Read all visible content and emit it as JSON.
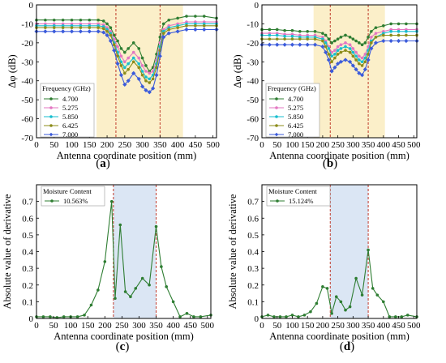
{
  "chart_data": [
    {
      "id": "a",
      "panel_label": "a",
      "type": "line",
      "xlabel": "Antenna coordinate position (mm)",
      "ylabel": "Δφ (dB)",
      "xlim": [
        0,
        510
      ],
      "ylim": [
        -70,
        0
      ],
      "xticks": [
        0,
        50,
        100,
        150,
        200,
        250,
        300,
        350,
        400,
        450,
        500
      ],
      "yticks": [
        0,
        -10,
        -20,
        -30,
        -40,
        -50,
        -60,
        -70
      ],
      "shaded_region": [
        170,
        415
      ],
      "shade_color": "#fbefc9",
      "vlines": [
        225,
        350
      ],
      "vline_color": "#c0392b",
      "legend": {
        "title": "Frequency (GHz)",
        "position": "middle-left"
      },
      "x": [
        0,
        25,
        50,
        75,
        100,
        125,
        150,
        175,
        190,
        200,
        210,
        220,
        230,
        240,
        250,
        260,
        275,
        290,
        300,
        310,
        320,
        330,
        340,
        350,
        360,
        375,
        400,
        425,
        450,
        475,
        510
      ],
      "series": [
        {
          "name": "4.700",
          "color": "#2e7d32",
          "marker": "circle",
          "values": [
            -8,
            -8,
            -8,
            -8,
            -8,
            -8,
            -8,
            -8,
            -8.5,
            -10,
            -12,
            -16,
            -19,
            -23,
            -25,
            -23,
            -20,
            -23,
            -28,
            -32,
            -35,
            -33,
            -26,
            -17,
            -10,
            -8,
            -7,
            -6,
            -6,
            -6,
            -7
          ]
        },
        {
          "name": "5.275",
          "color": "#e377c2",
          "marker": "circle",
          "values": [
            -10,
            -10,
            -10,
            -10,
            -10,
            -10,
            -10,
            -10,
            -10.5,
            -12,
            -14,
            -18,
            -22,
            -27,
            -30,
            -28,
            -25,
            -28,
            -32,
            -35,
            -36,
            -35,
            -29,
            -20,
            -13,
            -11,
            -10,
            -9,
            -9,
            -9,
            -9
          ]
        },
        {
          "name": "5.850",
          "color": "#17becf",
          "marker": "circle",
          "values": [
            -11,
            -11,
            -11,
            -11,
            -11,
            -11,
            -11,
            -11,
            -11.5,
            -13,
            -15,
            -20,
            -25,
            -30,
            -33,
            -31,
            -28,
            -31,
            -35,
            -38,
            -39,
            -37,
            -31,
            -22,
            -14,
            -12,
            -11,
            -10,
            -10,
            -10,
            -10
          ]
        },
        {
          "name": "6.425",
          "color": "#8c8c1a",
          "marker": "circle",
          "values": [
            -12,
            -12,
            -12,
            -12,
            -12,
            -12,
            -12,
            -12,
            -12.5,
            -14,
            -16,
            -21,
            -27,
            -32,
            -36,
            -34,
            -30,
            -33,
            -37,
            -40,
            -41,
            -39,
            -33,
            -24,
            -15,
            -13,
            -12,
            -11,
            -11,
            -11,
            -11
          ]
        },
        {
          "name": "7.000",
          "color": "#3b5bdb",
          "marker": "diamond",
          "values": [
            -14,
            -14,
            -14,
            -14,
            -14,
            -14,
            -14,
            -14,
            -14.5,
            -16,
            -19,
            -24,
            -31,
            -37,
            -42,
            -40,
            -36,
            -39,
            -43,
            -45,
            -46,
            -44,
            -37,
            -27,
            -17,
            -15,
            -14,
            -13,
            -13,
            -13,
            -13
          ]
        }
      ]
    },
    {
      "id": "b",
      "panel_label": "b",
      "type": "line",
      "xlabel": "Antenna coordinate position (mm)",
      "ylabel": "Δφ (dB)",
      "xlim": [
        0,
        510
      ],
      "ylim": [
        -70,
        0
      ],
      "xticks": [
        0,
        50,
        100,
        150,
        200,
        250,
        300,
        350,
        400,
        450,
        500
      ],
      "yticks": [
        0,
        -10,
        -20,
        -30,
        -40,
        -50,
        -60,
        -70
      ],
      "shaded_region": [
        170,
        405
      ],
      "shade_color": "#fbefc9",
      "vlines": [
        225,
        350
      ],
      "vline_color": "#c0392b",
      "legend": {
        "title": "Frequency (GHz)",
        "position": "middle-left"
      },
      "x": [
        0,
        25,
        50,
        75,
        100,
        125,
        150,
        175,
        200,
        210,
        220,
        230,
        240,
        250,
        260,
        275,
        290,
        300,
        310,
        320,
        330,
        340,
        350,
        360,
        375,
        400,
        425,
        450,
        475,
        510
      ],
      "series": [
        {
          "name": "4.700",
          "color": "#2e7d32",
          "marker": "circle",
          "values": [
            -13,
            -13,
            -13,
            -13.5,
            -13.5,
            -14,
            -14,
            -14,
            -15,
            -16,
            -18,
            -20,
            -19,
            -18,
            -17,
            -16,
            -17,
            -18,
            -19,
            -20,
            -21,
            -20,
            -17,
            -14,
            -12,
            -11,
            -10,
            -10,
            -10,
            -10
          ]
        },
        {
          "name": "5.275",
          "color": "#e377c2",
          "marker": "circle",
          "values": [
            -15,
            -15,
            -15,
            -15.5,
            -15.5,
            -16,
            -16,
            -16,
            -17,
            -19,
            -22,
            -25,
            -24,
            -22,
            -21,
            -20,
            -21,
            -23,
            -25,
            -27,
            -28,
            -26,
            -22,
            -17,
            -15,
            -14,
            -13,
            -13,
            -13,
            -13
          ]
        },
        {
          "name": "5.850",
          "color": "#17becf",
          "marker": "circle",
          "values": [
            -16,
            -16,
            -16,
            -16.5,
            -16.5,
            -17,
            -17,
            -17,
            -18,
            -20,
            -23,
            -27,
            -26,
            -24,
            -23,
            -22,
            -23,
            -25,
            -27,
            -29,
            -30,
            -28,
            -24,
            -19,
            -17,
            -15,
            -14,
            -14,
            -14,
            -14
          ]
        },
        {
          "name": "6.425",
          "color": "#8c8c1a",
          "marker": "circle",
          "values": [
            -18,
            -18,
            -18,
            -18,
            -18,
            -18,
            -18,
            -18,
            -19,
            -22,
            -26,
            -30,
            -28,
            -26,
            -25,
            -24,
            -25,
            -27,
            -29,
            -31,
            -32,
            -30,
            -26,
            -20,
            -17,
            -16,
            -16,
            -16,
            -16,
            -16
          ]
        },
        {
          "name": "7.000",
          "color": "#3b5bdb",
          "marker": "diamond",
          "values": [
            -21,
            -21,
            -21,
            -21,
            -21,
            -21,
            -21,
            -21,
            -22,
            -25,
            -29,
            -35,
            -33,
            -31,
            -30,
            -29,
            -30,
            -32,
            -34,
            -36,
            -37,
            -34,
            -29,
            -23,
            -20,
            -19,
            -19,
            -19,
            -19,
            -19
          ]
        }
      ]
    },
    {
      "id": "c",
      "panel_label": "c",
      "type": "line",
      "xlabel": "Antenna coordinate position (mm)",
      "ylabel": "Absolute value of derivative",
      "xlim": [
        0,
        510
      ],
      "ylim": [
        0,
        0.8
      ],
      "xticks": [
        0,
        50,
        100,
        150,
        200,
        250,
        300,
        350,
        400,
        450,
        500
      ],
      "yticks": [
        0,
        0.1,
        0.2,
        0.3,
        0.4,
        0.5,
        0.6,
        0.7
      ],
      "shaded_region": [
        225,
        350
      ],
      "shade_color": "#dbe6f4",
      "vlines": [
        225,
        350
      ],
      "vline_color": "#c0392b",
      "legend": {
        "title": "Moisture Content",
        "position": "top-left"
      },
      "x": [
        0,
        20,
        40,
        60,
        80,
        100,
        120,
        140,
        160,
        180,
        200,
        220,
        230,
        245,
        260,
        275,
        290,
        310,
        330,
        350,
        365,
        380,
        400,
        420,
        440,
        460,
        480,
        510
      ],
      "series": [
        {
          "name": "10.563%",
          "color": "#2e7d32",
          "marker": "circle",
          "values": [
            0.01,
            0.01,
            0.01,
            0.005,
            0.01,
            0.01,
            0.01,
            0.02,
            0.08,
            0.17,
            0.34,
            0.7,
            0.12,
            0.56,
            0.16,
            0.13,
            0.18,
            0.24,
            0.2,
            0.55,
            0.31,
            0.19,
            0.1,
            0.01,
            0.03,
            0.01,
            0.01,
            0.02
          ]
        }
      ]
    },
    {
      "id": "d",
      "panel_label": "d",
      "type": "line",
      "xlabel": "Antenna coordinate position (mm)",
      "ylabel": "Absolute value of derivative",
      "xlim": [
        0,
        510
      ],
      "ylim": [
        0,
        0.8
      ],
      "xticks": [
        0,
        50,
        100,
        150,
        200,
        250,
        300,
        350,
        400,
        450,
        500
      ],
      "yticks": [
        0,
        0.1,
        0.2,
        0.3,
        0.4,
        0.5,
        0.6,
        0.7
      ],
      "shaded_region": [
        225,
        350
      ],
      "shade_color": "#dbe6f4",
      "vlines": [
        225,
        350
      ],
      "vline_color": "#c0392b",
      "legend": {
        "title": "Moisture Content",
        "position": "top-left"
      },
      "x": [
        0,
        20,
        40,
        60,
        80,
        100,
        120,
        140,
        160,
        180,
        200,
        215,
        230,
        245,
        260,
        275,
        290,
        310,
        330,
        350,
        365,
        380,
        400,
        420,
        440,
        460,
        480,
        510
      ],
      "series": [
        {
          "name": "15.124%",
          "color": "#2e7d32",
          "marker": "circle",
          "values": [
            0.01,
            0.02,
            0.01,
            0.01,
            0.01,
            0.02,
            0.01,
            0.02,
            0.04,
            0.09,
            0.19,
            0.18,
            0.03,
            0.13,
            0.1,
            0.05,
            0.07,
            0.24,
            0.14,
            0.41,
            0.18,
            0.14,
            0.1,
            0.01,
            0.01,
            0.01,
            0.02,
            0.01
          ]
        }
      ]
    }
  ]
}
